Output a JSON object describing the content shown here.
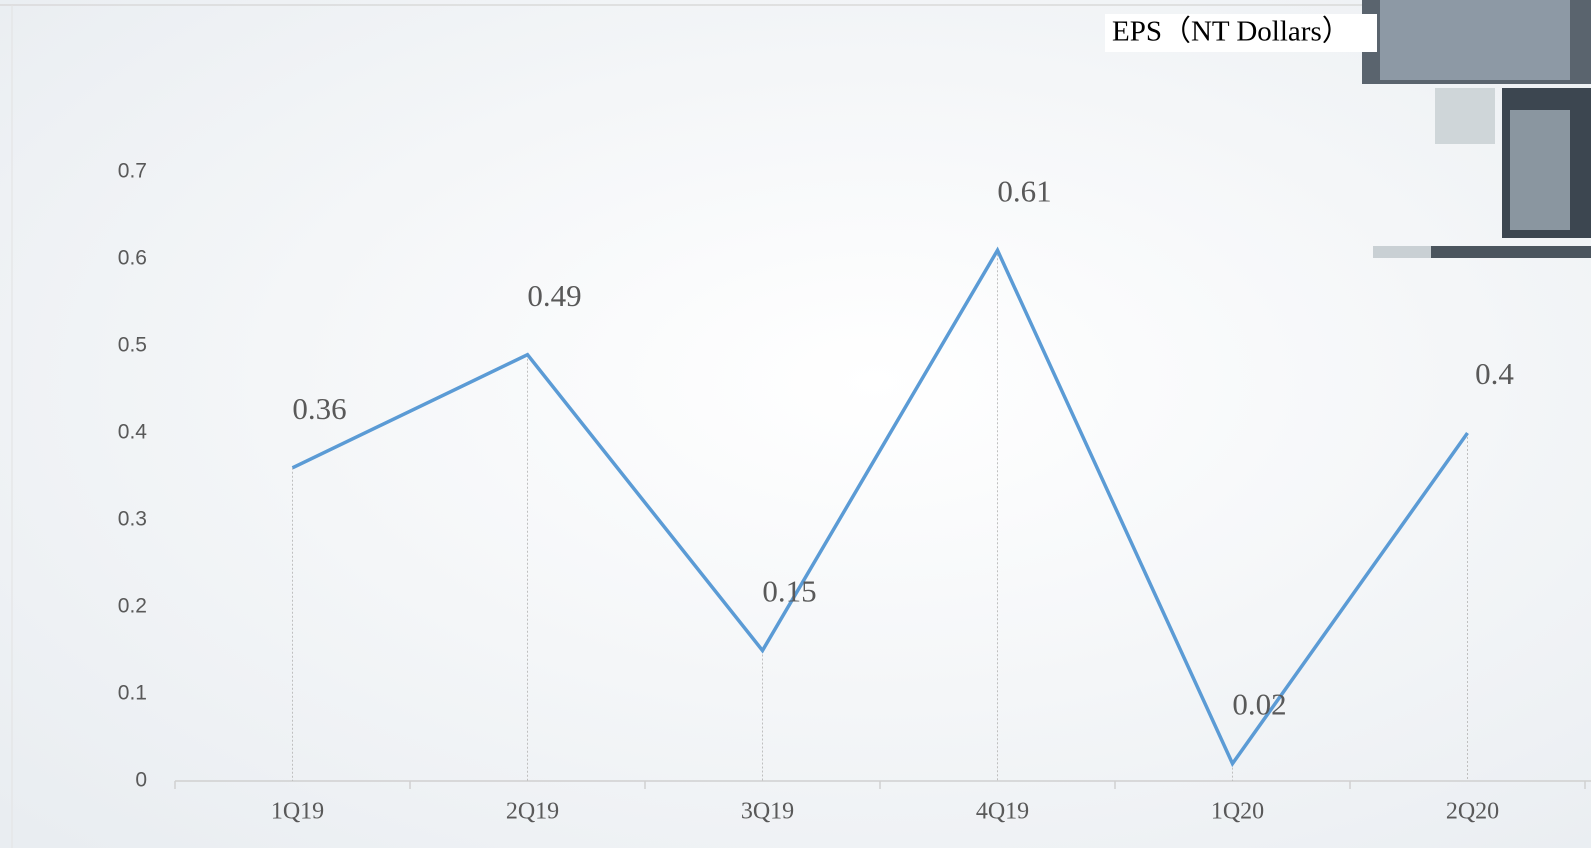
{
  "chart_data": {
    "type": "line",
    "title": "EPS（NT Dollars）",
    "categories": [
      "1Q19",
      "2Q19",
      "3Q19",
      "4Q19",
      "1Q20",
      "2Q20"
    ],
    "values": [
      0.36,
      0.49,
      0.15,
      0.61,
      0.02,
      0.4
    ],
    "color": "#5b9bd5",
    "ylim": [
      0,
      0.7
    ],
    "yticks": [
      0,
      0.1,
      0.2,
      0.3,
      0.4,
      0.5,
      0.6,
      0.7
    ],
    "grid": false
  }
}
